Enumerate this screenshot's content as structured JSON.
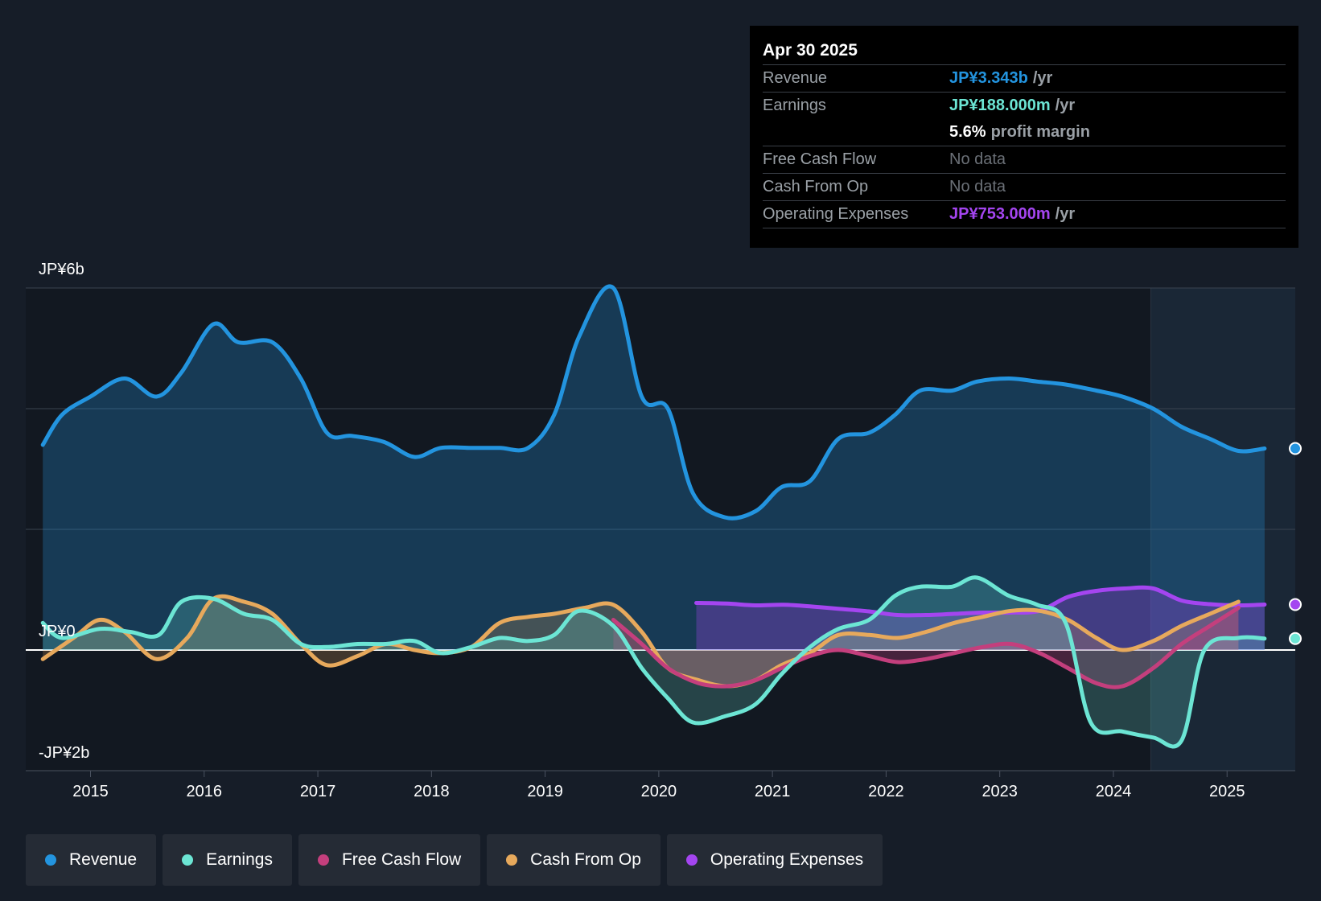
{
  "tooltip": {
    "date": "Apr 30 2025",
    "rows": [
      {
        "label": "Revenue",
        "value": "JP¥3.343b",
        "unit": "/yr",
        "color": "#2394df"
      },
      {
        "label": "Earnings",
        "value": "JP¥188.000m",
        "unit": "/yr",
        "color": "#6ce5d4"
      },
      {
        "label": "",
        "value": "5.6%",
        "unit": "profit margin",
        "color": "#ffffff"
      },
      {
        "label": "Free Cash Flow",
        "value": "No data",
        "unit": "",
        "color": "#6b7077"
      },
      {
        "label": "Cash From Op",
        "value": "No data",
        "unit": "",
        "color": "#6b7077"
      },
      {
        "label": "Operating Expenses",
        "value": "JP¥753.000m",
        "unit": "/yr",
        "color": "#a445f0"
      }
    ]
  },
  "legend": [
    {
      "label": "Revenue",
      "color": "#2394df"
    },
    {
      "label": "Earnings",
      "color": "#6ce5d4"
    },
    {
      "label": "Free Cash Flow",
      "color": "#c43f7d"
    },
    {
      "label": "Cash From Op",
      "color": "#e7a95c"
    },
    {
      "label": "Operating Expenses",
      "color": "#a445f0"
    }
  ],
  "chart_data": {
    "type": "line",
    "title": "",
    "xlabel": "",
    "ylabel": "",
    "x_ticks": [
      "2015",
      "2016",
      "2017",
      "2018",
      "2019",
      "2020",
      "2021",
      "2022",
      "2023",
      "2024",
      "2025"
    ],
    "y_tick_labels": [
      "JP¥6b",
      "JP¥0",
      "-JP¥2b"
    ],
    "ylim": [
      -2,
      6
    ],
    "xlim": [
      2014.43,
      2025.6
    ],
    "series": [
      {
        "name": "Revenue",
        "color": "#2394df",
        "x": [
          2014.58,
          2014.75,
          2015.0,
          2015.3,
          2015.58,
          2015.8,
          2016.08,
          2016.3,
          2016.6,
          2016.85,
          2017.08,
          2017.3,
          2017.58,
          2017.85,
          2018.08,
          2018.35,
          2018.6,
          2018.85,
          2019.08,
          2019.3,
          2019.6,
          2019.85,
          2020.08,
          2020.3,
          2020.58,
          2020.85,
          2021.08,
          2021.33,
          2021.58,
          2021.85,
          2022.08,
          2022.3,
          2022.58,
          2022.8,
          2023.08,
          2023.33,
          2023.58,
          2023.85,
          2024.08,
          2024.35,
          2024.6,
          2024.85,
          2025.1,
          2025.33
        ],
        "values": [
          3.4,
          3.9,
          4.2,
          4.5,
          4.2,
          4.6,
          5.4,
          5.1,
          5.1,
          4.5,
          3.6,
          3.55,
          3.45,
          3.2,
          3.35,
          3.35,
          3.35,
          3.35,
          3.9,
          5.2,
          6.0,
          4.2,
          4.0,
          2.6,
          2.2,
          2.3,
          2.7,
          2.8,
          3.5,
          3.6,
          3.9,
          4.3,
          4.3,
          4.45,
          4.5,
          4.45,
          4.4,
          4.3,
          4.2,
          4.0,
          3.7,
          3.5,
          3.3,
          3.34
        ]
      },
      {
        "name": "Earnings",
        "color": "#6ce5d4",
        "x": [
          2014.58,
          2014.75,
          2015.08,
          2015.35,
          2015.6,
          2015.8,
          2016.08,
          2016.35,
          2016.6,
          2016.85,
          2017.08,
          2017.35,
          2017.6,
          2017.85,
          2018.08,
          2018.35,
          2018.6,
          2018.85,
          2019.08,
          2019.3,
          2019.6,
          2019.85,
          2020.08,
          2020.3,
          2020.58,
          2020.85,
          2021.08,
          2021.33,
          2021.58,
          2021.85,
          2022.08,
          2022.3,
          2022.58,
          2022.8,
          2023.08,
          2023.33,
          2023.58,
          2023.8,
          2024.08,
          2024.35,
          2024.6,
          2024.8,
          2025.1,
          2025.33
        ],
        "values": [
          0.45,
          0.2,
          0.35,
          0.3,
          0.25,
          0.8,
          0.85,
          0.6,
          0.5,
          0.1,
          0.05,
          0.1,
          0.1,
          0.15,
          -0.05,
          0.05,
          0.2,
          0.15,
          0.25,
          0.65,
          0.4,
          -0.3,
          -0.8,
          -1.2,
          -1.1,
          -0.9,
          -0.4,
          0.05,
          0.35,
          0.5,
          0.9,
          1.05,
          1.05,
          1.2,
          0.9,
          0.75,
          0.45,
          -1.2,
          -1.35,
          -1.45,
          -1.5,
          0.0,
          0.2,
          0.19
        ]
      },
      {
        "name": "Free Cash Flow",
        "color": "#c43f7d",
        "x": [
          2019.6,
          2019.85,
          2020.08,
          2020.35,
          2020.6,
          2020.85,
          2021.08,
          2021.33,
          2021.58,
          2021.85,
          2022.1,
          2022.35,
          2022.6,
          2022.85,
          2023.1,
          2023.35,
          2023.6,
          2023.85,
          2024.08,
          2024.35,
          2024.6,
          2024.85,
          2025.1
        ],
        "values": [
          0.5,
          0.1,
          -0.3,
          -0.55,
          -0.6,
          -0.5,
          -0.3,
          -0.1,
          0.0,
          -0.1,
          -0.2,
          -0.15,
          -0.05,
          0.05,
          0.1,
          -0.05,
          -0.3,
          -0.55,
          -0.6,
          -0.3,
          0.1,
          0.4,
          0.7
        ]
      },
      {
        "name": "Cash From Op",
        "color": "#e7a95c",
        "x": [
          2014.58,
          2014.85,
          2015.08,
          2015.3,
          2015.58,
          2015.85,
          2016.08,
          2016.35,
          2016.6,
          2016.85,
          2017.08,
          2017.35,
          2017.6,
          2017.85,
          2018.08,
          2018.35,
          2018.6,
          2018.85,
          2019.08,
          2019.35,
          2019.6,
          2019.85,
          2020.08,
          2020.35,
          2020.6,
          2020.85,
          2021.08,
          2021.33,
          2021.58,
          2021.85,
          2022.1,
          2022.35,
          2022.6,
          2022.85,
          2023.1,
          2023.35,
          2023.6,
          2023.85,
          2024.08,
          2024.35,
          2024.6,
          2024.85,
          2025.1
        ],
        "values": [
          -0.15,
          0.2,
          0.5,
          0.3,
          -0.15,
          0.2,
          0.85,
          0.8,
          0.6,
          0.1,
          -0.25,
          -0.1,
          0.1,
          0.0,
          -0.05,
          0.05,
          0.45,
          0.55,
          0.6,
          0.7,
          0.75,
          0.3,
          -0.3,
          -0.5,
          -0.6,
          -0.5,
          -0.25,
          -0.05,
          0.25,
          0.25,
          0.2,
          0.3,
          0.45,
          0.55,
          0.65,
          0.65,
          0.5,
          0.2,
          0.0,
          0.15,
          0.4,
          0.6,
          0.8
        ]
      },
      {
        "name": "Operating Expenses",
        "color": "#a445f0",
        "x": [
          2020.33,
          2020.6,
          2020.85,
          2021.1,
          2021.35,
          2021.6,
          2021.85,
          2022.1,
          2022.35,
          2022.6,
          2022.85,
          2023.1,
          2023.35,
          2023.6,
          2023.85,
          2024.1,
          2024.35,
          2024.6,
          2024.85,
          2025.1,
          2025.33
        ],
        "values": [
          0.78,
          0.77,
          0.74,
          0.75,
          0.72,
          0.68,
          0.64,
          0.58,
          0.58,
          0.6,
          0.62,
          0.62,
          0.65,
          0.88,
          0.98,
          1.02,
          1.02,
          0.82,
          0.76,
          0.74,
          0.753
        ]
      }
    ]
  }
}
